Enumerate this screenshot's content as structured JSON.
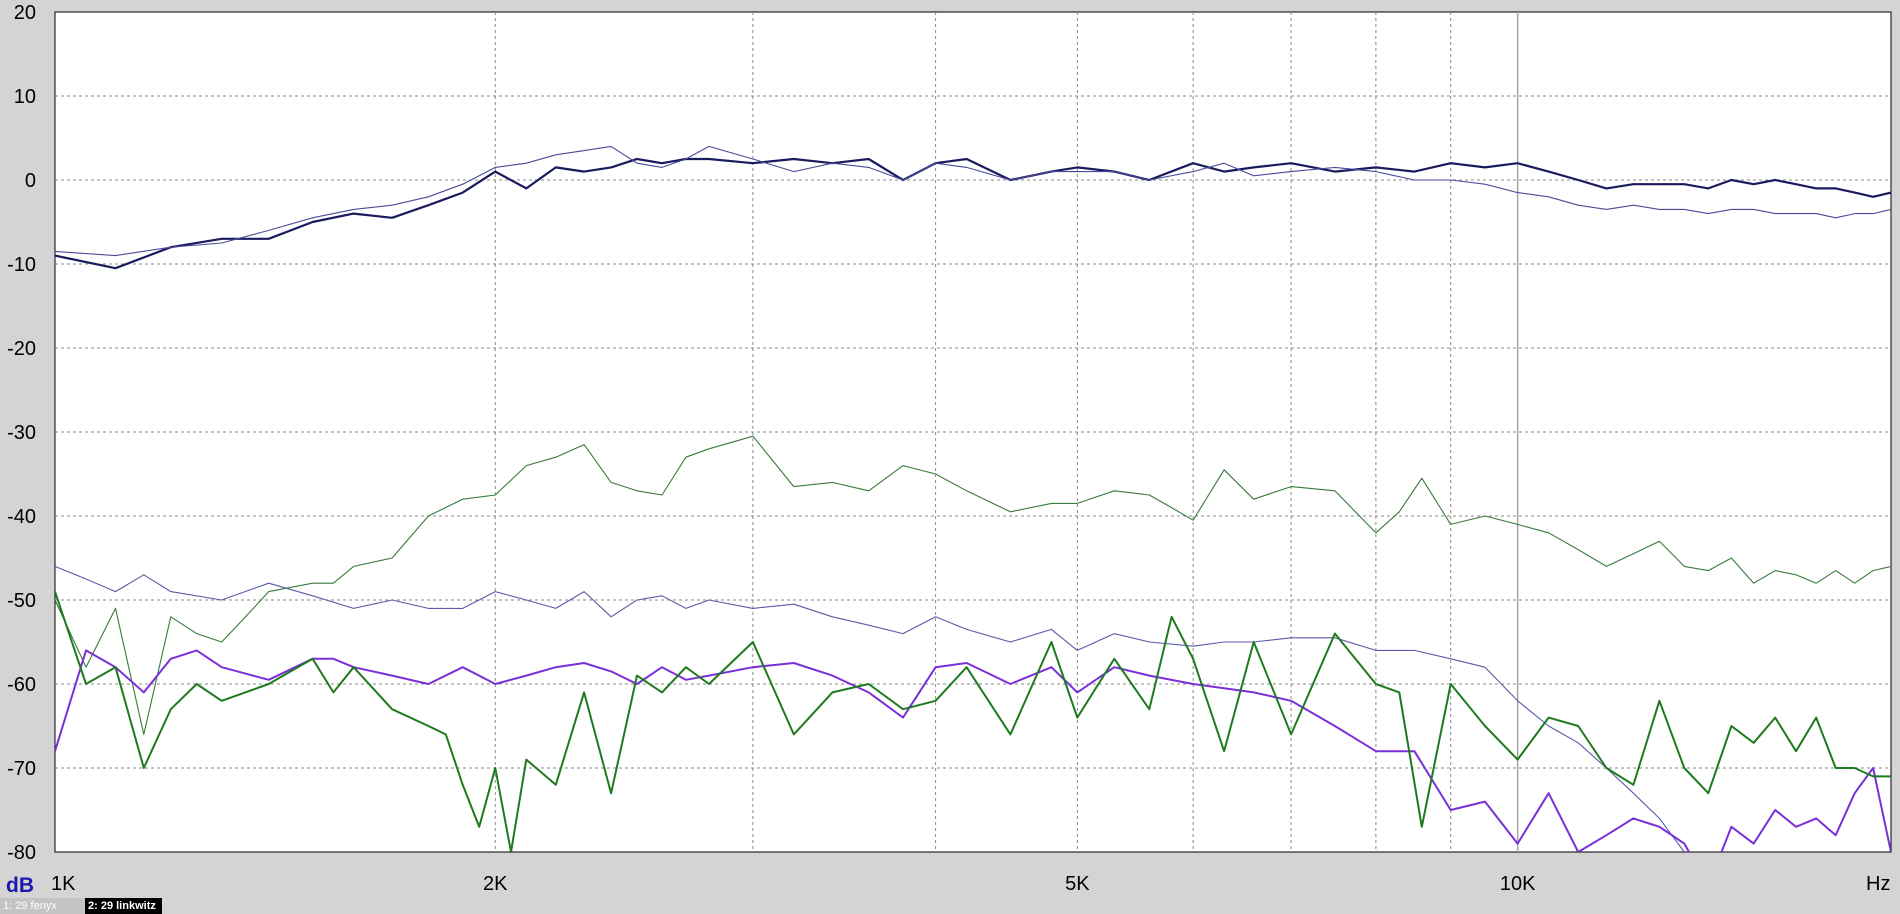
{
  "tabs": [
    {
      "label": "1: 29 fenyx",
      "active": false
    },
    {
      "label": "2: 29 linkwitz",
      "active": true
    }
  ],
  "chart_data": {
    "type": "line",
    "title": "",
    "xlabel": "Hz",
    "ylabel": "dB",
    "xscale": "log",
    "xlim": [
      1000,
      18000
    ],
    "ylim": [
      -80,
      20
    ],
    "y_ticks": [
      20,
      10,
      0,
      -10,
      -20,
      -30,
      -40,
      -50,
      -60,
      -70,
      -80
    ],
    "x_tick_labels": [
      {
        "value": 1000,
        "label": "1K"
      },
      {
        "value": 2000,
        "label": "2K"
      },
      {
        "value": 5000,
        "label": "5K"
      },
      {
        "value": 10000,
        "label": "10K"
      }
    ],
    "grid": true,
    "legend": "none",
    "series": [
      {
        "color": "#1a1a5e",
        "width": 2.2,
        "x": [
          1000,
          1100,
          1200,
          1300,
          1400,
          1500,
          1600,
          1700,
          1800,
          1900,
          2000,
          2100,
          2200,
          2300,
          2400,
          2500,
          2600,
          2700,
          2800,
          3000,
          3200,
          3400,
          3600,
          3800,
          4000,
          4200,
          4500,
          4800,
          5000,
          5300,
          5600,
          6000,
          6300,
          6600,
          7000,
          7500,
          8000,
          8500,
          9000,
          9500,
          10000,
          10500,
          11000,
          11500,
          12000,
          12500,
          13000,
          13500,
          14000,
          14500,
          15000,
          15500,
          16000,
          16500,
          17000,
          17500,
          18000
        ],
        "y": [
          -9,
          -10.5,
          -8,
          -7,
          -7,
          -5,
          -4,
          -4.5,
          -3,
          -1.5,
          1,
          -1,
          1.5,
          1,
          1.5,
          2.5,
          2,
          2.5,
          2.5,
          2,
          2.5,
          2,
          2.5,
          0,
          2,
          2.5,
          0,
          1,
          1.5,
          1,
          0,
          2,
          1,
          1.5,
          2,
          1,
          1.5,
          1,
          2,
          1.5,
          2,
          1,
          0,
          -1,
          -0.5,
          -0.5,
          -0.5,
          -1,
          0,
          -0.5,
          0,
          -0.5,
          -1,
          -1,
          -1.5,
          -2,
          -1.5
        ]
      },
      {
        "color": "#4a4a9a",
        "width": 1.1,
        "x": [
          1000,
          1100,
          1200,
          1300,
          1400,
          1500,
          1600,
          1700,
          1800,
          1900,
          2000,
          2100,
          2200,
          2300,
          2400,
          2500,
          2600,
          2700,
          2800,
          3000,
          3200,
          3400,
          3600,
          3800,
          4000,
          4200,
          4500,
          4800,
          5000,
          5300,
          5600,
          6000,
          6300,
          6600,
          7000,
          7500,
          8000,
          8500,
          9000,
          9500,
          10000,
          10500,
          11000,
          11500,
          12000,
          12500,
          13000,
          13500,
          14000,
          14500,
          15000,
          15500,
          16000,
          16500,
          17000,
          17500,
          18000
        ],
        "y": [
          -8.5,
          -9,
          -8,
          -7.5,
          -6,
          -4.5,
          -3.5,
          -3,
          -2,
          -0.5,
          1.5,
          2,
          3,
          3.5,
          4,
          2,
          1.5,
          2.5,
          4,
          2.5,
          1,
          2,
          1.5,
          0,
          2,
          1.5,
          0,
          1,
          1,
          1,
          0,
          1,
          2,
          0.5,
          1,
          1.5,
          1,
          0,
          0,
          -0.5,
          -1.5,
          -2,
          -3,
          -3.5,
          -3,
          -3.5,
          -3.5,
          -4,
          -3.5,
          -3.5,
          -4,
          -4,
          -4,
          -4.5,
          -4,
          -4,
          -3.5
        ]
      },
      {
        "color": "#3a7a3a",
        "width": 1.1,
        "x": [
          1000,
          1050,
          1100,
          1150,
          1200,
          1250,
          1300,
          1350,
          1400,
          1500,
          1550,
          1600,
          1700,
          1800,
          1900,
          2000,
          2100,
          2200,
          2300,
          2400,
          2500,
          2600,
          2700,
          2800,
          3000,
          3200,
          3400,
          3600,
          3800,
          4000,
          4200,
          4500,
          4800,
          5000,
          5300,
          5600,
          5800,
          6000,
          6300,
          6600,
          7000,
          7500,
          8000,
          8300,
          8600,
          9000,
          9500,
          10000,
          10500,
          11000,
          11500,
          12000,
          12500,
          13000,
          13500,
          14000,
          14500,
          15000,
          15500,
          16000,
          16500,
          17000,
          17500,
          18000
        ],
        "y": [
          -50,
          -58,
          -51,
          -66,
          -52,
          -54,
          -55,
          -52,
          -49,
          -48,
          -48,
          -46,
          -45,
          -40,
          -38,
          -37.5,
          -34,
          -33,
          -31.5,
          -36,
          -37,
          -37.5,
          -33,
          -32,
          -30.5,
          -36.5,
          -36,
          -37,
          -34,
          -35,
          -37,
          -39.5,
          -38.5,
          -38.5,
          -37,
          -37.5,
          -39,
          -40.5,
          -34.5,
          -38,
          -36.5,
          -37,
          -42,
          -39.5,
          -35.5,
          -41,
          -40,
          -41,
          -42,
          -44,
          -46,
          -44.5,
          -43,
          -46,
          -46.5,
          -45,
          -48,
          -46.5,
          -47,
          -48,
          -46.5,
          -48,
          -46.5,
          -46
        ]
      },
      {
        "color": "#5a5aa8",
        "width": 1.1,
        "x": [
          1000,
          1050,
          1100,
          1150,
          1200,
          1300,
          1400,
          1500,
          1600,
          1700,
          1800,
          1900,
          2000,
          2100,
          2200,
          2300,
          2400,
          2500,
          2600,
          2700,
          2800,
          3000,
          3200,
          3400,
          3600,
          3800,
          4000,
          4200,
          4500,
          4800,
          5000,
          5300,
          5600,
          6000,
          6300,
          6600,
          7000,
          7500,
          8000,
          8500,
          9000,
          9500,
          10000,
          10500,
          11000,
          11500,
          12000,
          12500,
          13000,
          13500,
          14000
        ],
        "y": [
          -46,
          -47.5,
          -49,
          -47,
          -49,
          -50,
          -48,
          -49.5,
          -51,
          -50,
          -51,
          -51,
          -49,
          -50,
          -51,
          -49,
          -52,
          -50,
          -49.5,
          -51,
          -50,
          -51,
          -50.5,
          -52,
          -53,
          -54,
          -52,
          -53.5,
          -55,
          -53.5,
          -56,
          -54,
          -55,
          -55.5,
          -55,
          -55,
          -54.5,
          -54.5,
          -56,
          -56,
          -57,
          -58,
          -62,
          -65,
          -67,
          -70,
          -73,
          -76,
          -80,
          -83,
          -86
        ]
      },
      {
        "color": "#7b2fd8",
        "width": 2.0,
        "x": [
          1000,
          1050,
          1100,
          1150,
          1200,
          1250,
          1300,
          1400,
          1500,
          1550,
          1600,
          1700,
          1800,
          1900,
          2000,
          2100,
          2200,
          2300,
          2400,
          2500,
          2600,
          2700,
          2800,
          3000,
          3200,
          3400,
          3600,
          3800,
          4000,
          4200,
          4500,
          4800,
          5000,
          5300,
          5600,
          6000,
          6300,
          6600,
          7000,
          7500,
          8000,
          8500,
          9000,
          9500,
          10000,
          10500,
          11000,
          11500,
          12000,
          12500,
          13000,
          13500,
          14000,
          14500,
          15000,
          15500,
          16000,
          16500,
          17000,
          17500,
          18000
        ],
        "y": [
          -68,
          -56,
          -58,
          -61,
          -57,
          -56,
          -58,
          -59.5,
          -57,
          -57,
          -58,
          -59,
          -60,
          -58,
          -60,
          -59,
          -58,
          -57.5,
          -58.5,
          -60,
          -58,
          -59.5,
          -59,
          -58,
          -57.5,
          -59,
          -61,
          -64,
          -58,
          -57.5,
          -60,
          -58,
          -61,
          -58,
          -59,
          -60,
          -60.5,
          -61,
          -62,
          -65,
          -68,
          -68,
          -75,
          -74,
          -79,
          -73,
          -80,
          -78,
          -76,
          -77,
          -79,
          -84,
          -77,
          -79,
          -75,
          -77,
          -76,
          -78,
          -73,
          -70,
          -80
        ]
      },
      {
        "color": "#1e7a1e",
        "width": 2.0,
        "x": [
          1000,
          1050,
          1100,
          1150,
          1200,
          1250,
          1300,
          1400,
          1500,
          1550,
          1600,
          1700,
          1800,
          1850,
          1900,
          1950,
          2000,
          2050,
          2100,
          2200,
          2300,
          2400,
          2500,
          2600,
          2700,
          2800,
          3000,
          3200,
          3400,
          3600,
          3800,
          4000,
          4200,
          4500,
          4800,
          5000,
          5300,
          5600,
          5800,
          6000,
          6300,
          6600,
          7000,
          7500,
          8000,
          8300,
          8600,
          9000,
          9500,
          10000,
          10500,
          11000,
          11500,
          12000,
          12500,
          13000,
          13500,
          14000,
          14500,
          15000,
          15500,
          16000,
          16500,
          17000,
          17500,
          18000
        ],
        "y": [
          -49,
          -60,
          -58,
          -70,
          -63,
          -60,
          -62,
          -60,
          -57,
          -61,
          -58,
          -63,
          -65,
          -66,
          -72,
          -77,
          -70,
          -80,
          -69,
          -72,
          -61,
          -73,
          -59,
          -61,
          -58,
          -60,
          -55,
          -66,
          -61,
          -60,
          -63,
          -62,
          -58,
          -66,
          -55,
          -64,
          -57,
          -63,
          -52,
          -57,
          -68,
          -55,
          -66,
          -54,
          -60,
          -61,
          -77,
          -60,
          -65,
          -69,
          -64,
          -65,
          -70,
          -72,
          -62,
          -70,
          -73,
          -65,
          -67,
          -64,
          -68,
          -64,
          -70,
          -70,
          -71,
          -71
        ]
      }
    ]
  }
}
